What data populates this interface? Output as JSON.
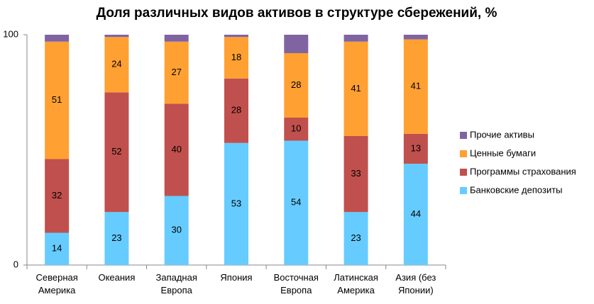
{
  "chart_data": {
    "type": "stacked_bar",
    "title": "Доля различных видов активов в структуре сбережений, %",
    "categories": [
      "Северная Америка",
      "Океания",
      "Западная Европа",
      "Япония",
      "Восточная Европа",
      "Латинская Америка",
      "Азия (без Японии)"
    ],
    "series": [
      {
        "name": "Банковские депозиты",
        "color": "#66ccff",
        "values": [
          14,
          23,
          30,
          53,
          54,
          23,
          44
        ],
        "labels": true
      },
      {
        "name": "Программы страхования",
        "color": "#c0504d",
        "values": [
          32,
          52,
          40,
          28,
          10,
          33,
          13
        ],
        "labels": true
      },
      {
        "name": "Ценные бумаги",
        "color": "#ffa033",
        "values": [
          51,
          24,
          27,
          18,
          28,
          41,
          41
        ],
        "labels": true
      },
      {
        "name": "Прочие активы",
        "color": "#8064a2",
        "values": [
          3,
          1,
          3,
          1,
          8,
          3,
          2
        ],
        "labels": false
      }
    ],
    "ylim": [
      0,
      100
    ],
    "yticks": [
      0,
      100
    ],
    "grid": false,
    "legend": "right"
  }
}
